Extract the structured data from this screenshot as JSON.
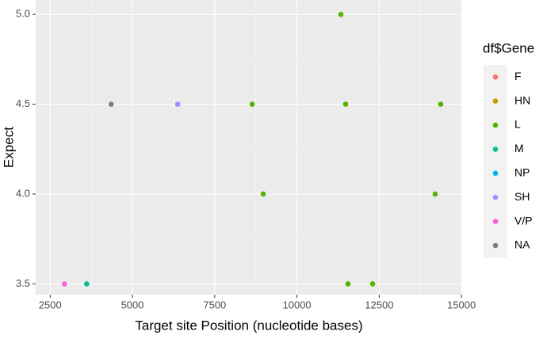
{
  "chart_data": {
    "type": "scatter",
    "x_label": "Target site Position (nucleotide bases)",
    "y_label": "Expect",
    "legend_title": "df$Gene",
    "legend_position": "right",
    "grid": true,
    "xlim": [
      2060,
      15020
    ],
    "ylim": [
      3.44,
      5.08
    ],
    "xticks": [
      2500,
      5000,
      7500,
      10000,
      12500,
      15000
    ],
    "yticks": [
      3.5,
      {
        "value": 4.0,
        "label": "4.0"
      },
      4.5,
      {
        "value": 5.0,
        "label": "5.0"
      }
    ],
    "series": [
      {
        "name": "F",
        "color": "#F8766D",
        "x": [],
        "values": []
      },
      {
        "name": "HN",
        "color": "#C49A00",
        "x": [],
        "values": []
      },
      {
        "name": "L",
        "color": "#53B400",
        "x": [
          11335,
          8640,
          11480,
          14370,
          8975,
          14200,
          11550,
          12300
        ],
        "values": [
          5.0,
          4.5,
          4.5,
          4.5,
          4.0,
          4.0,
          3.5,
          3.5
        ]
      },
      {
        "name": "M",
        "color": "#00C094",
        "x": [
          3610
        ],
        "values": [
          3.5
        ]
      },
      {
        "name": "NP",
        "color": "#00B6EB",
        "x": [],
        "values": []
      },
      {
        "name": "SH",
        "color": "#A58AFF",
        "x": [
          6375
        ],
        "values": [
          4.5
        ]
      },
      {
        "name": "V/P",
        "color": "#FB61D7",
        "x": [
          2935
        ],
        "values": [
          3.5
        ]
      },
      {
        "name": "NA",
        "color": "#7F7F7F",
        "x": [
          4355
        ],
        "values": [
          4.5
        ]
      }
    ]
  }
}
